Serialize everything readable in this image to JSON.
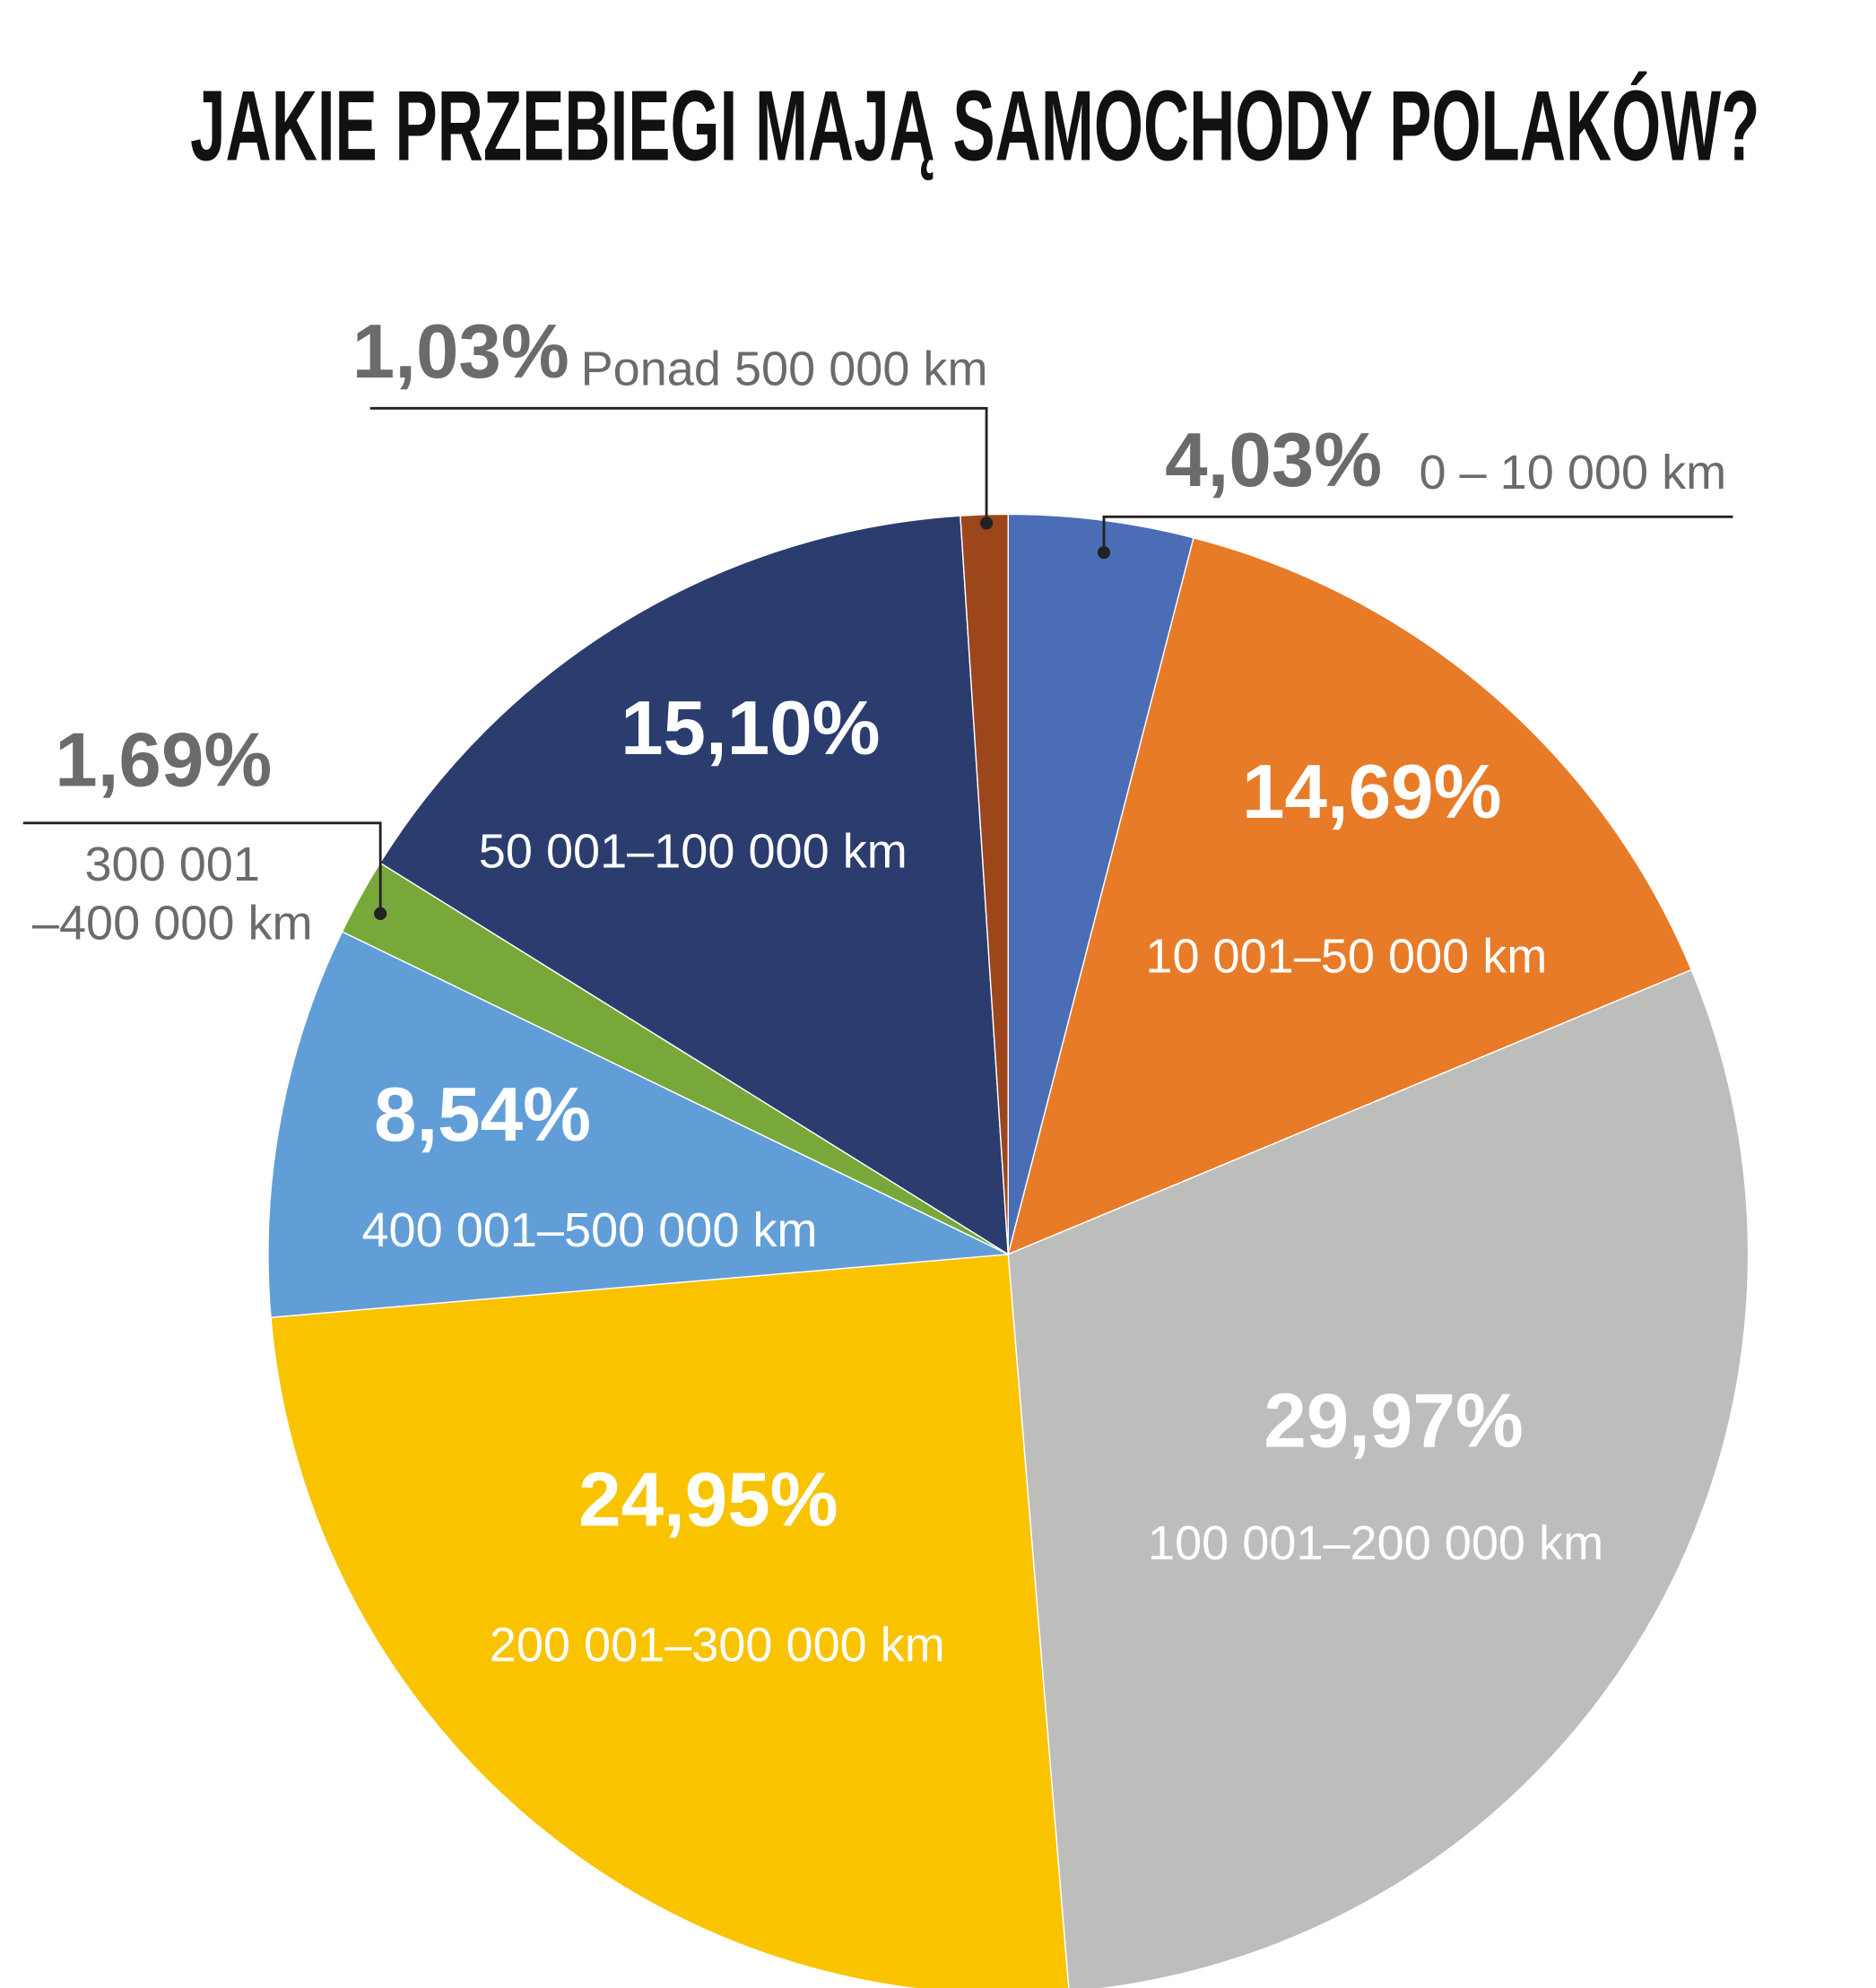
{
  "chart_data": {
    "type": "pie",
    "title": "JAKIE PRZEBIEGI MAJĄ SAMOCHODY POLAKÓW?",
    "categories": [
      "0 – 10 000 km",
      "10 001–50 000 km",
      "100 001–200 000 km",
      "200 001–300 000 km",
      "400 001–500 000 km",
      "300 001\n–400 000 km",
      "50 001–100 000 km",
      "Ponad 500 000 km"
    ],
    "values": [
      4.03,
      14.69,
      29.97,
      24.95,
      8.54,
      1.69,
      15.1,
      1.03
    ],
    "value_labels": [
      "4,03%",
      "14,69%",
      "29,97%",
      "24,95%",
      "8,54%",
      "1,69%",
      "15,10%",
      "1,03%"
    ],
    "colors": [
      "#4a6db5",
      "#e87b28",
      "#bdbdbc",
      "#f9c300",
      "#619ed8",
      "#79a83a",
      "#2b3c6e",
      "#9d451b"
    ]
  }
}
